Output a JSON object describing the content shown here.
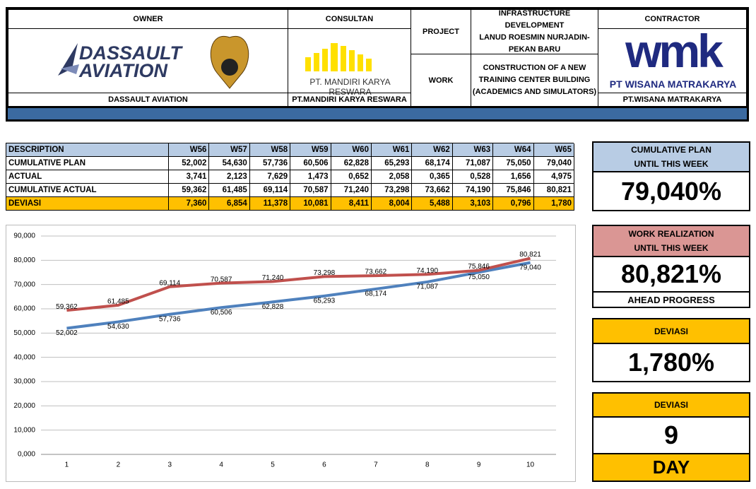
{
  "header": {
    "owner": {
      "label": "OWNER",
      "logo_lines": [
        "DASSAULT",
        "AVIATION"
      ],
      "name": "DASSAULT AVIATION"
    },
    "consultant": {
      "label": "CONSULTAN",
      "logo_text": "PT. MANDIRI KARYA RESWARA",
      "name": "PT.MANDIRI KARYA RESWARA"
    },
    "project": {
      "label": "PROJECT",
      "lines": [
        "INFRASTRUCTURE DEVELOPMENT",
        "LANUD ROESMIN NURJADIN-",
        "PEKAN BARU"
      ]
    },
    "work": {
      "label": "WORK",
      "lines": [
        "CONSTRUCTION OF A NEW",
        "TRAINING CENTER BUILDING",
        "(ACADEMICS AND SIMULATORS)"
      ]
    },
    "contractor": {
      "label": "CONTRACTOR",
      "logo_text": "wmk",
      "logo_name": "PT WISANA MATRAKARYA",
      "name": "PT.WISANA MATRAKARYA"
    }
  },
  "table": {
    "header": [
      "DESCRIPTION",
      "W56",
      "W57",
      "W58",
      "W59",
      "W60",
      "W61",
      "W62",
      "W63",
      "W64",
      "W65"
    ],
    "rows": [
      [
        "CUMULATIVE PLAN",
        "52,002",
        "54,630",
        "57,736",
        "60,506",
        "62,828",
        "65,293",
        "68,174",
        "71,087",
        "75,050",
        "79,040"
      ],
      [
        "ACTUAL",
        "3,741",
        "2,123",
        "7,629",
        "1,473",
        "0,652",
        "2,058",
        "0,365",
        "0,528",
        "1,656",
        "4,975"
      ],
      [
        "CUMULATIVE ACTUAL",
        "59,362",
        "61,485",
        "69,114",
        "70,587",
        "71,240",
        "73,298",
        "73,662",
        "74,190",
        "75,846",
        "80,821"
      ],
      [
        "DEVIASI",
        "7,360",
        "6,854",
        "11,378",
        "10,081",
        "8,411",
        "8,004",
        "5,488",
        "3,103",
        "0,796",
        "1,780"
      ]
    ]
  },
  "chart_data": {
    "type": "line",
    "categories": [
      "1",
      "2",
      "3",
      "4",
      "5",
      "6",
      "7",
      "8",
      "9",
      "10"
    ],
    "series": [
      {
        "name": "CUMULATIVE PLAN",
        "color": "#4f81bd",
        "values": [
          52.002,
          54.63,
          57.736,
          60.506,
          62.828,
          65.293,
          68.174,
          71.087,
          75.05,
          79.04
        ],
        "value_labels": [
          "52,002",
          "54,630",
          "57,736",
          "60,506",
          "62,828",
          "65,293",
          "68,174",
          "71,087",
          "75,050",
          "79,040"
        ]
      },
      {
        "name": "CUMULATIVE ACTUAL",
        "color": "#c0504d",
        "values": [
          59.362,
          61.485,
          69.114,
          70.587,
          71.24,
          73.298,
          73.662,
          74.19,
          75.846,
          80.821
        ],
        "value_labels": [
          "59,362",
          "61,485",
          "69,114",
          "70,587",
          "71,240",
          "73,298",
          "73,662",
          "74,190",
          "75,846",
          "80,821"
        ]
      }
    ],
    "ylim": [
      0,
      90
    ],
    "yticks": [
      {
        "value": 0,
        "label": "0,000"
      },
      {
        "value": 10,
        "label": "10,000"
      },
      {
        "value": 20,
        "label": "20,000"
      },
      {
        "value": 30,
        "label": "30,000"
      },
      {
        "value": 40,
        "label": "40,000"
      },
      {
        "value": 50,
        "label": "50,000"
      },
      {
        "value": 60,
        "label": "60,000"
      },
      {
        "value": 70,
        "label": "70,000"
      },
      {
        "value": 80,
        "label": "80,000"
      },
      {
        "value": 90,
        "label": "90,000"
      }
    ],
    "grid": true
  },
  "kpis": {
    "plan": {
      "title": [
        "CUMULATIVE PLAN",
        "UNTIL THIS WEEK"
      ],
      "value": "79,040%"
    },
    "realization": {
      "title": [
        "WORK REALIZATION",
        "UNTIL THIS WEEK"
      ],
      "value": "80,821%",
      "status": "AHEAD PROGRESS"
    },
    "deviation": {
      "title": "DEVIASI",
      "value": "1,780%"
    },
    "days": {
      "title": "DEVIASI",
      "value": "9",
      "unit": "DAY"
    }
  }
}
